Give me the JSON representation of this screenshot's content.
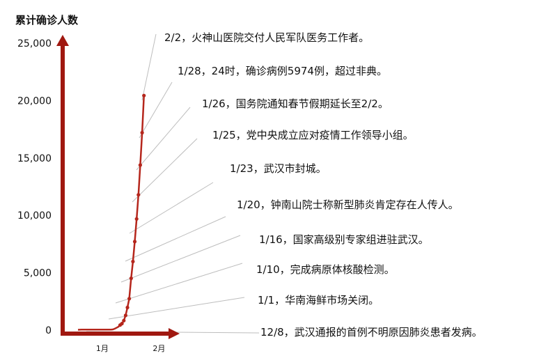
{
  "chart_data": {
    "type": "line",
    "title": "累计确诊人数",
    "xlabel": "",
    "ylabel": "",
    "x_ticks": [
      "1月",
      "2月"
    ],
    "y_ticks": [
      "0",
      "5,000",
      "10,000",
      "15,000",
      "20,000",
      "25,000"
    ],
    "ylim": [
      0,
      25000
    ],
    "grid": false,
    "legend": "none",
    "colors": {
      "axis": "#a01810",
      "series": "#b5261c",
      "leader": "#bdbdbd"
    },
    "series": [
      {
        "x": [
          "2019-12-29",
          "2019-12-31",
          "2020-01-02",
          "2020-01-04",
          "2020-01-06",
          "2020-01-08",
          "2020-01-10",
          "2020-01-12",
          "2020-01-14",
          "2020-01-16",
          "2020-01-17",
          "2020-01-18",
          "2020-01-19",
          "2020-01-20",
          "2020-01-21",
          "2020-01-22",
          "2020-01-23",
          "2020-01-24",
          "2020-01-25",
          "2020-01-26",
          "2020-01-27",
          "2020-01-28",
          "2020-01-29",
          "2020-01-30",
          "2020-01-31",
          "2020-02-01",
          "2020-02-02",
          "2020-02-03"
        ],
        "values": [
          30,
          40,
          41,
          41,
          41,
          41,
          41,
          41,
          41,
          45,
          62,
          121,
          198,
          291,
          440,
          571,
          830,
          1287,
          1975,
          2744,
          4515,
          5974,
          7711,
          9692,
          11791,
          14380,
          17205,
          20438
        ]
      }
    ],
    "annotations": [
      {
        "text": "2/2，火神山医院交付人民军队医务工作者。",
        "x": "2020-02-02"
      },
      {
        "text": "1/28，24时，确诊病例5974例，超过非典。",
        "x": "2020-01-28"
      },
      {
        "text": "1/26，国务院通知春节假期延长至2/2。",
        "x": "2020-01-26"
      },
      {
        "text": "1/25，党中央成立应对疫情工作领导小组。",
        "x": "2020-01-25"
      },
      {
        "text": "1/23，武汉市封城。",
        "x": "2020-01-23"
      },
      {
        "text": "1/20，钟南山院士称新型肺炎肯定存在人传人。",
        "x": "2020-01-20"
      },
      {
        "text": "1/16，国家高级别专家组进驻武汉。",
        "x": "2020-01-16"
      },
      {
        "text": "1/10，完成病原体核酸检测。",
        "x": "2020-01-10"
      },
      {
        "text": "1/1，华南海鲜市场关闭。",
        "x": "2020-01-01"
      },
      {
        "text": "12/8，武汉通报的首例不明原因肺炎患者发病。",
        "x": "2019-12-08"
      }
    ]
  }
}
